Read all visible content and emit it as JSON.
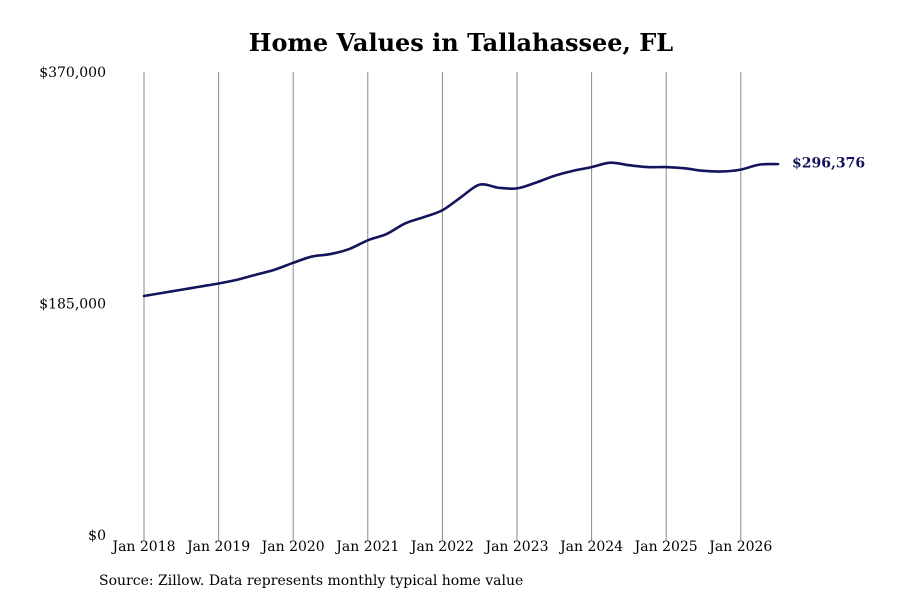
{
  "chart_data": {
    "type": "line",
    "title": "Home Values in Tallahassee, FL",
    "xlabel": "",
    "ylabel": "",
    "ylim": [
      0,
      370000
    ],
    "y_ticks": [
      0,
      185000,
      370000
    ],
    "y_tick_labels": [
      "$0",
      "$185,000",
      "$370,000"
    ],
    "x_ticks": [
      "Jan 2018",
      "Jan 2019",
      "Jan 2020",
      "Jan 2021",
      "Jan 2022",
      "Jan 2023",
      "Jan 2024",
      "Jan 2025",
      "Jan 2026"
    ],
    "grid": "vertical",
    "series": [
      {
        "color": "#14145c",
        "points": [
          {
            "x": "2018-01",
            "y": 191000
          },
          {
            "x": "2018-04",
            "y": 193500
          },
          {
            "x": "2018-07",
            "y": 196000
          },
          {
            "x": "2018-10",
            "y": 198500
          },
          {
            "x": "2019-01",
            "y": 201000
          },
          {
            "x": "2019-04",
            "y": 204000
          },
          {
            "x": "2019-07",
            "y": 208000
          },
          {
            "x": "2019-10",
            "y": 212000
          },
          {
            "x": "2020-01",
            "y": 217500
          },
          {
            "x": "2020-04",
            "y": 222500
          },
          {
            "x": "2020-07",
            "y": 224500
          },
          {
            "x": "2020-10",
            "y": 228500
          },
          {
            "x": "2021-01",
            "y": 235500
          },
          {
            "x": "2021-04",
            "y": 240500
          },
          {
            "x": "2021-07",
            "y": 249000
          },
          {
            "x": "2021-10",
            "y": 254000
          },
          {
            "x": "2022-01",
            "y": 259500
          },
          {
            "x": "2022-04",
            "y": 270000
          },
          {
            "x": "2022-07",
            "y": 280000
          },
          {
            "x": "2022-10",
            "y": 277500
          },
          {
            "x": "2023-01",
            "y": 277000
          },
          {
            "x": "2023-04",
            "y": 281500
          },
          {
            "x": "2023-07",
            "y": 287000
          },
          {
            "x": "2023-10",
            "y": 291000
          },
          {
            "x": "2024-01",
            "y": 294000
          },
          {
            "x": "2024-04",
            "y": 297500
          },
          {
            "x": "2024-07",
            "y": 295500
          },
          {
            "x": "2024-10",
            "y": 294000
          },
          {
            "x": "2025-01",
            "y": 294000
          },
          {
            "x": "2025-04",
            "y": 293000
          },
          {
            "x": "2025-07",
            "y": 291000
          },
          {
            "x": "2025-10",
            "y": 290500
          },
          {
            "x": "2026-01",
            "y": 292000
          },
          {
            "x": "2026-04",
            "y": 296000
          },
          {
            "x": "2026-07",
            "y": 296376
          }
        ]
      }
    ],
    "end_label": "$296,376"
  },
  "source_note": "Source: Zillow. Data represents monthly typical home value"
}
